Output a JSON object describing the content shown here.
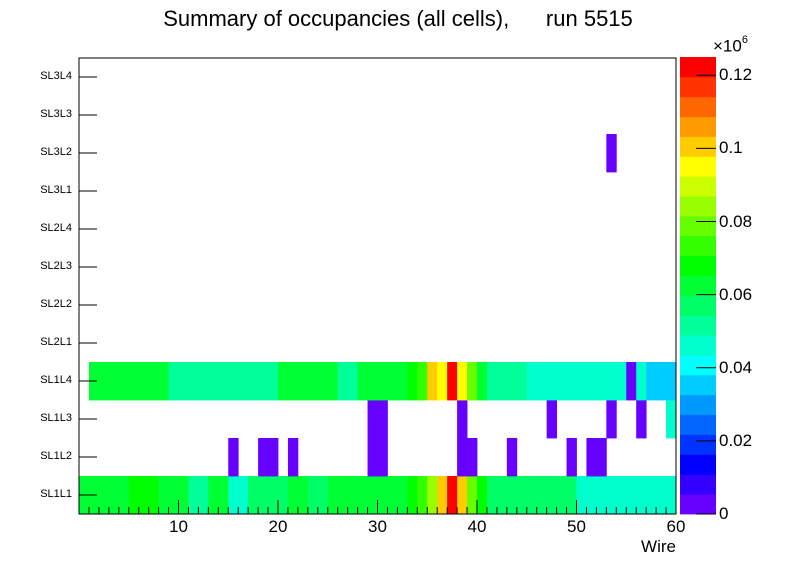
{
  "chart_data": {
    "type": "heatmap",
    "title": "Summary of occupancies (all cells),",
    "run_label": "run 5515",
    "xlabel": "Wire",
    "ylabel": "",
    "xlim": [
      0,
      60
    ],
    "x_ticks": [
      10,
      20,
      30,
      40,
      50,
      60
    ],
    "y_categories": [
      "SL1L1",
      "SL1L2",
      "SL1L3",
      "SL1L4",
      "SL2L1",
      "SL2L2",
      "SL2L3",
      "SL2L4",
      "SL3L1",
      "SL3L2",
      "SL3L3",
      "SL3L4"
    ],
    "z_label_multiplier": "×10",
    "z_label_exponent": "6",
    "zlim": [
      0,
      0.125
    ],
    "z_ticks": [
      "0",
      "0.02",
      "0.04",
      "0.06",
      "0.08",
      "0.1",
      "0.12"
    ],
    "z_tick_values": [
      0,
      0.02,
      0.04,
      0.06,
      0.08,
      0.1,
      0.12
    ],
    "palette": [
      "#6600ff",
      "#3300ff",
      "#0000ff",
      "#0033ff",
      "#0066ff",
      "#0099ff",
      "#00ccff",
      "#00ffff",
      "#00ffcc",
      "#00ff99",
      "#00ff66",
      "#00ff33",
      "#00ff00",
      "#33ff00",
      "#66ff00",
      "#99ff00",
      "#ccff00",
      "#ffff00",
      "#ffcc00",
      "#ff9900",
      "#ff6600",
      "#ff3300",
      "#ff0000"
    ],
    "cells": [
      {
        "row": "SL1L1",
        "values": [
          0.065,
          0.065,
          0.065,
          0.065,
          0.062,
          0.068,
          0.068,
          0.068,
          0.062,
          0.062,
          0.062,
          0.052,
          0.052,
          0.062,
          0.062,
          0.048,
          0.048,
          0.058,
          0.058,
          0.058,
          0.058,
          0.062,
          0.062,
          0.058,
          0.058,
          0.062,
          0.062,
          0.062,
          0.062,
          0.062,
          0.062,
          0.062,
          0.062,
          0.068,
          0.072,
          0.085,
          0.098,
          0.12,
          0.1,
          0.078,
          0.068,
          0.055,
          0.055,
          0.055,
          0.055,
          0.055,
          0.055,
          0.055,
          0.055,
          0.055,
          0.046,
          0.046,
          0.046,
          0.046,
          0.046,
          0.046,
          0.046,
          0.046,
          0.046,
          0.046
        ]
      },
      {
        "row": "SL1L2",
        "values": [
          0,
          0,
          0,
          0,
          0,
          0,
          0,
          0,
          0,
          0,
          0,
          0,
          0,
          0,
          0,
          0.003,
          0,
          0,
          0.003,
          0.003,
          0,
          0.003,
          0,
          0,
          0,
          0,
          0,
          0,
          0,
          0.003,
          0.003,
          0,
          0,
          0,
          0,
          0,
          0,
          0,
          0.003,
          0.003,
          0,
          0,
          0,
          0.003,
          0,
          0,
          0,
          0,
          0,
          0.003,
          0,
          0.003,
          0.003,
          0,
          0,
          0,
          0,
          0,
          0,
          0
        ]
      },
      {
        "row": "SL1L3",
        "values": [
          0,
          0,
          0,
          0,
          0,
          0,
          0,
          0,
          0,
          0,
          0,
          0,
          0,
          0,
          0,
          0,
          0,
          0,
          0,
          0,
          0,
          0,
          0,
          0,
          0,
          0,
          0,
          0,
          0,
          0.003,
          0.003,
          0,
          0,
          0,
          0,
          0,
          0,
          0,
          0.003,
          0,
          0,
          0,
          0,
          0,
          0,
          0,
          0,
          0.003,
          0,
          0,
          0,
          0,
          0,
          0.003,
          0,
          0,
          0.003,
          0,
          0,
          0.046
        ]
      },
      {
        "row": "SL1L4",
        "values": [
          0,
          0.062,
          0.062,
          0.062,
          0.062,
          0.062,
          0.062,
          0.062,
          0.062,
          0.052,
          0.052,
          0.052,
          0.052,
          0.052,
          0.052,
          0.052,
          0.052,
          0.052,
          0.052,
          0.052,
          0.062,
          0.062,
          0.062,
          0.062,
          0.062,
          0.062,
          0.052,
          0.052,
          0.062,
          0.062,
          0.062,
          0.062,
          0.062,
          0.068,
          0.072,
          0.1,
          0.095,
          0.12,
          0.095,
          0.078,
          0.062,
          0.052,
          0.052,
          0.052,
          0.052,
          0.046,
          0.046,
          0.046,
          0.046,
          0.046,
          0.046,
          0.046,
          0.046,
          0.046,
          0.046,
          0.003,
          0.046,
          0.038,
          0.038,
          0.038
        ]
      },
      {
        "row": "SL3L2",
        "values": [
          0,
          0,
          0,
          0,
          0,
          0,
          0,
          0,
          0,
          0,
          0,
          0,
          0,
          0,
          0,
          0,
          0,
          0,
          0,
          0,
          0,
          0,
          0,
          0,
          0,
          0,
          0,
          0,
          0,
          0,
          0,
          0,
          0,
          0,
          0,
          0,
          0,
          0,
          0,
          0,
          0,
          0,
          0,
          0,
          0,
          0,
          0,
          0,
          0,
          0,
          0,
          0,
          0,
          0.003,
          0,
          0,
          0,
          0,
          0,
          0
        ]
      }
    ]
  }
}
